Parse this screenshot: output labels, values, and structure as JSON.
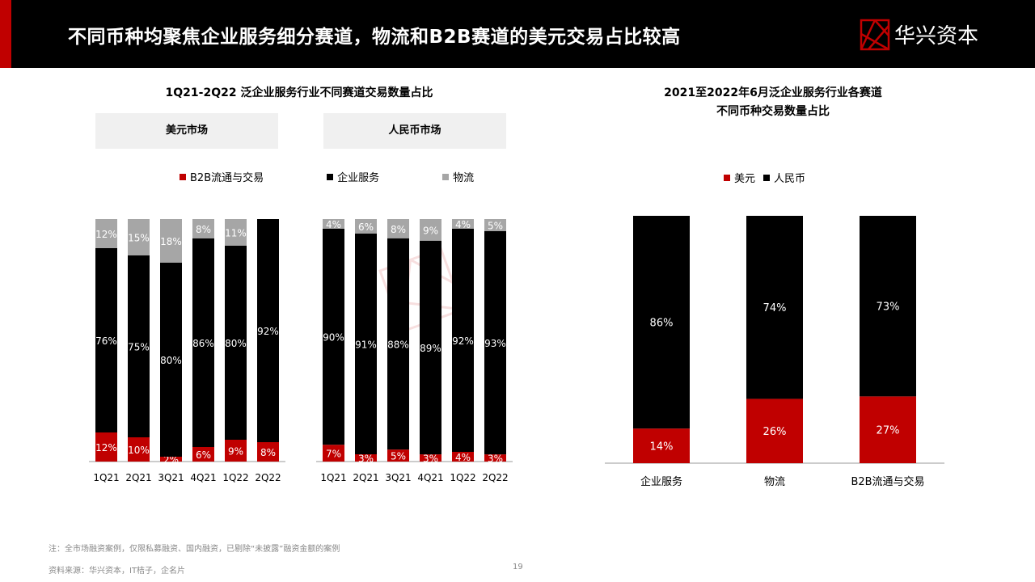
{
  "header": {
    "title": "不同币种均聚焦企业服务细分赛道，物流和B2B赛道的美元交易占比较高",
    "logo_text": "华兴资本"
  },
  "colors": {
    "red": "#c00000",
    "black": "#000000",
    "gray": "#a6a6a6"
  },
  "chart_data": [
    {
      "type": "bar",
      "stacked": true,
      "title": "1Q21-2Q22 泛企业服务行业不同赛道交易数量占比",
      "legend": [
        "B2B流通与交易",
        "企业服务",
        "物流"
      ],
      "panels": [
        {
          "label": "美元市场",
          "categories": [
            "1Q21",
            "2Q21",
            "3Q21",
            "4Q21",
            "1Q22",
            "2Q22"
          ],
          "series": [
            {
              "name": "B2B流通与交易",
              "values": [
                12,
                10,
                2,
                6,
                9,
                8
              ]
            },
            {
              "name": "企业服务",
              "values": [
                76,
                75,
                80,
                86,
                80,
                92
              ]
            },
            {
              "name": "物流",
              "values": [
                12,
                15,
                18,
                8,
                11,
                0
              ]
            }
          ]
        },
        {
          "label": "人民币市场",
          "categories": [
            "1Q21",
            "2Q21",
            "3Q21",
            "4Q21",
            "1Q22",
            "2Q22"
          ],
          "series": [
            {
              "name": "B2B流通与交易",
              "values": [
                7,
                3,
                5,
                3,
                4,
                3
              ]
            },
            {
              "name": "企业服务",
              "values": [
                90,
                91,
                88,
                89,
                92,
                93
              ]
            },
            {
              "name": "物流",
              "values": [
                4,
                6,
                8,
                9,
                4,
                5
              ]
            }
          ]
        }
      ],
      "ylim": [
        0,
        100
      ]
    },
    {
      "type": "bar",
      "stacked": true,
      "title_lines": [
        "2021至2022年6月泛企业服务行业各赛道",
        "不同币种交易数量占比"
      ],
      "legend": [
        "美元",
        "人民币"
      ],
      "categories": [
        "企业服务",
        "物流",
        "B2B流通与交易"
      ],
      "series": [
        {
          "name": "美元",
          "values": [
            14,
            26,
            27
          ]
        },
        {
          "name": "人民币",
          "values": [
            86,
            74,
            73
          ]
        }
      ],
      "ylim": [
        0,
        100
      ]
    }
  ],
  "footer": {
    "note": "注：全市场融资案例，仅限私募融资、国内融资，已剔除“未披露”融资金额的案例",
    "source": "资料来源：华兴资本，IT桔子，企名片",
    "page": "19"
  }
}
